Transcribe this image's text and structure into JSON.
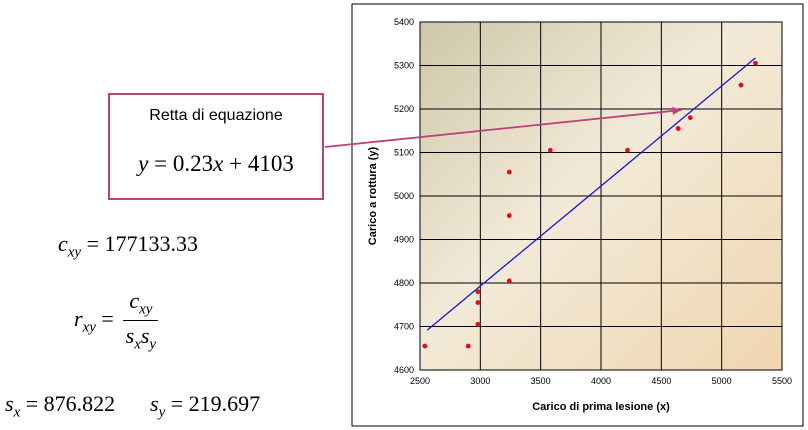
{
  "equation_box": {
    "caption": "Retta di equazione",
    "y": "y",
    "rhs": "= 0.23",
    "x": "x",
    "tail": "+ 4103"
  },
  "formulas": {
    "cov_sym": "c",
    "cov_sub": "xy",
    "cov_val": "= 177133.33",
    "r_sym": "r",
    "r_sub": "xy",
    "r_eq": "=",
    "num_sym": "c",
    "num_sub": "xy",
    "den1_sym": "s",
    "den1_sub": "x",
    "den2_sym": "s",
    "den2_sub": "y",
    "sx_sym": "s",
    "sx_sub": "x",
    "sx_val": "= 876.822",
    "sy_sym": "s",
    "sy_sub": "y",
    "sy_val": "= 219.697"
  },
  "chart_data": {
    "type": "scatter",
    "title": "",
    "xlabel": "Carico di prima lesione (x)",
    "ylabel": "Carico a rottura (y)",
    "xlim": [
      2500,
      5500
    ],
    "ylim": [
      4600,
      5400
    ],
    "x_ticks": [
      2500,
      3000,
      3500,
      4000,
      4500,
      5000,
      5500
    ],
    "y_ticks": [
      4600,
      4700,
      4800,
      4900,
      5000,
      5100,
      5200,
      5300,
      5400
    ],
    "grid": true,
    "points": [
      {
        "x": 2540,
        "y": 4655
      },
      {
        "x": 2900,
        "y": 4655
      },
      {
        "x": 2980,
        "y": 4705
      },
      {
        "x": 2980,
        "y": 4755
      },
      {
        "x": 2980,
        "y": 4780
      },
      {
        "x": 3240,
        "y": 4805
      },
      {
        "x": 3240,
        "y": 4955
      },
      {
        "x": 3240,
        "y": 5055
      },
      {
        "x": 3580,
        "y": 5105
      },
      {
        "x": 4220,
        "y": 5105
      },
      {
        "x": 4640,
        "y": 5155
      },
      {
        "x": 4740,
        "y": 5180
      },
      {
        "x": 5160,
        "y": 5255
      },
      {
        "x": 5280,
        "y": 5305
      }
    ],
    "trendline": {
      "slope": 0.23,
      "intercept": 4103,
      "x_start": 2560,
      "x_end": 5280
    },
    "colors": {
      "points": "#e01010",
      "line": "#1a1ad0",
      "arrow": "#c0407a",
      "grid": "#000000"
    }
  }
}
